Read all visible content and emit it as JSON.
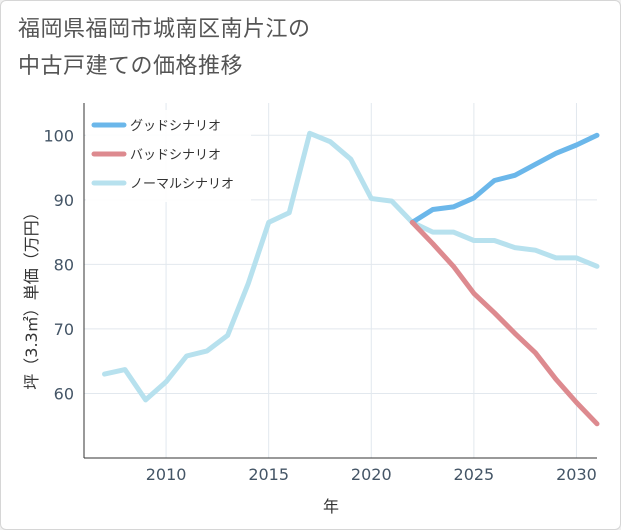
{
  "title_lines": [
    "福岡県福岡市城南区南片江の",
    "中古戸建ての価格推移"
  ],
  "chart_data": {
    "type": "line",
    "xlabel": "年",
    "ylabel": "坪（3.3㎡）単価（万円）",
    "xlim": [
      2006,
      2031
    ],
    "ylim": [
      50,
      105
    ],
    "xticks": [
      2010,
      2015,
      2020,
      2025,
      2030
    ],
    "yticks": [
      60,
      70,
      80,
      90,
      100
    ],
    "grid": true,
    "legend_position": "top-left",
    "series": [
      {
        "name": "グッドシナリオ",
        "color": "#6bb7ea",
        "x": [
          2022,
          2023,
          2024,
          2025,
          2026,
          2027,
          2028,
          2029,
          2030,
          2031
        ],
        "y": [
          86.5,
          88.5,
          88.9,
          90.3,
          93.0,
          93.8,
          95.5,
          97.2,
          98.5,
          100.0
        ]
      },
      {
        "name": "バッドシナリオ",
        "color": "#dd8a8f",
        "x": [
          2022,
          2023,
          2024,
          2025,
          2026,
          2027,
          2028,
          2029,
          2030,
          2031
        ],
        "y": [
          86.5,
          83.2,
          79.7,
          75.5,
          72.5,
          69.3,
          66.3,
          62.2,
          58.6,
          55.3
        ]
      },
      {
        "name": "ノーマルシナリオ",
        "color": "#b7e1ee",
        "x": [
          2007,
          2008,
          2009,
          2010,
          2011,
          2012,
          2013,
          2014,
          2015,
          2016,
          2017,
          2018,
          2019,
          2020,
          2021,
          2022,
          2023,
          2024,
          2025,
          2026,
          2027,
          2028,
          2029,
          2030,
          2031
        ],
        "y": [
          63.0,
          63.7,
          59.0,
          61.8,
          65.8,
          66.6,
          69.0,
          77.0,
          86.5,
          88.0,
          100.3,
          99.0,
          96.3,
          90.2,
          89.8,
          86.5,
          85.0,
          85.0,
          83.7,
          83.7,
          82.6,
          82.2,
          81.0,
          81.0,
          79.7
        ]
      }
    ]
  }
}
